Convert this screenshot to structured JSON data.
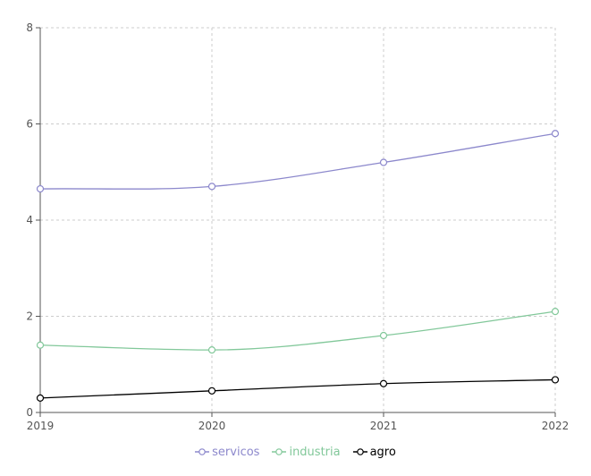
{
  "chart_data": {
    "type": "line",
    "title": "",
    "xlabel": "",
    "ylabel": "",
    "x": [
      "2019",
      "2020",
      "2021",
      "2022"
    ],
    "ylim": [
      0,
      8
    ],
    "yticks": [
      "0",
      "2",
      "4",
      "6",
      "8"
    ],
    "grid": true,
    "legend_position": "bottom",
    "series": [
      {
        "name": "servicos",
        "color": "#8c88cc",
        "values": [
          4.65,
          4.7,
          5.2,
          5.8
        ]
      },
      {
        "name": "industria",
        "color": "#82c89a",
        "values": [
          1.4,
          1.3,
          1.6,
          2.1
        ]
      },
      {
        "name": "agro",
        "color": "#000000",
        "values": [
          0.3,
          0.45,
          0.6,
          0.68
        ]
      }
    ]
  }
}
